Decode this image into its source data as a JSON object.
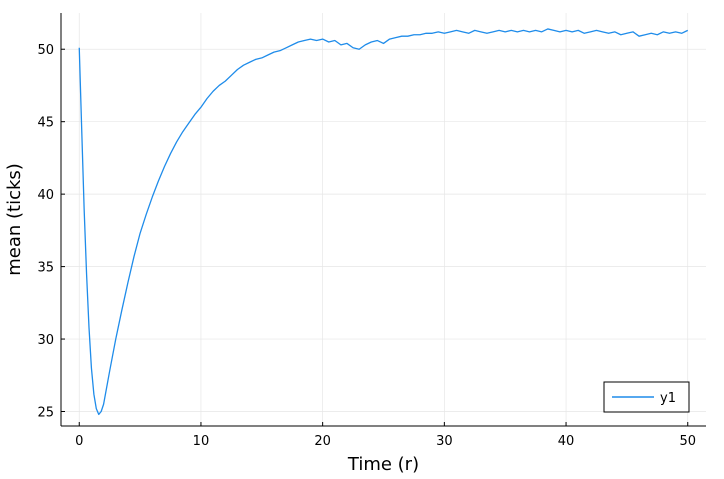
{
  "chart_data": {
    "type": "line",
    "title": "",
    "xlabel": "Time (r)",
    "ylabel": "mean (ticks)",
    "xlim": [
      -1.5,
      51.5
    ],
    "ylim": [
      24.0,
      52.5
    ],
    "xticks": [
      0,
      10,
      20,
      30,
      40,
      50
    ],
    "yticks": [
      25,
      30,
      35,
      40,
      45,
      50
    ],
    "xtick_labels": [
      "0",
      "10",
      "20",
      "30",
      "40",
      "50"
    ],
    "ytick_labels": [
      "25",
      "30",
      "35",
      "40",
      "45",
      "50"
    ],
    "grid": true,
    "legend": {
      "position": "bottom-right",
      "entries": [
        "y1"
      ]
    },
    "series": [
      {
        "name": "y1",
        "color": "#1f8cea",
        "x": [
          0,
          0.2,
          0.4,
          0.6,
          0.8,
          1.0,
          1.2,
          1.4,
          1.6,
          1.8,
          2.0,
          2.5,
          3.0,
          3.5,
          4.0,
          4.5,
          5.0,
          5.5,
          6.0,
          6.5,
          7.0,
          7.5,
          8.0,
          8.5,
          9.0,
          9.5,
          10.0,
          10.5,
          11.0,
          11.5,
          12.0,
          12.5,
          13.0,
          13.5,
          14.0,
          14.5,
          15.0,
          15.5,
          16.0,
          16.5,
          17.0,
          17.5,
          18.0,
          18.5,
          19.0,
          19.5,
          20.0,
          20.5,
          21.0,
          21.5,
          22.0,
          22.5,
          23.0,
          23.5,
          24.0,
          24.5,
          25.0,
          25.5,
          26.0,
          26.5,
          27.0,
          27.5,
          28.0,
          28.5,
          29.0,
          29.5,
          30.0,
          30.5,
          31.0,
          31.5,
          32.0,
          32.5,
          33.0,
          33.5,
          34.0,
          34.5,
          35.0,
          35.5,
          36.0,
          36.5,
          37.0,
          37.5,
          38.0,
          38.5,
          39.0,
          39.5,
          40.0,
          40.5,
          41.0,
          41.5,
          42.0,
          42.5,
          43.0,
          43.5,
          44.0,
          44.5,
          45.0,
          45.5,
          46.0,
          46.5,
          47.0,
          47.5,
          48.0,
          48.5,
          49.0,
          49.5,
          50.0
        ],
        "values": [
          50.1,
          44.5,
          39.0,
          34.5,
          30.8,
          28.0,
          26.2,
          25.2,
          24.8,
          25.0,
          25.5,
          27.8,
          30.0,
          32.0,
          33.9,
          35.7,
          37.3,
          38.6,
          39.8,
          40.9,
          41.9,
          42.8,
          43.6,
          44.3,
          44.9,
          45.5,
          46.0,
          46.6,
          47.1,
          47.5,
          47.8,
          48.2,
          48.6,
          48.9,
          49.1,
          49.3,
          49.4,
          49.6,
          49.8,
          49.9,
          50.1,
          50.3,
          50.5,
          50.6,
          50.7,
          50.6,
          50.7,
          50.5,
          50.6,
          50.3,
          50.4,
          50.1,
          50.0,
          50.3,
          50.5,
          50.6,
          50.4,
          50.7,
          50.8,
          50.9,
          50.9,
          51.0,
          51.0,
          51.1,
          51.1,
          51.2,
          51.1,
          51.2,
          51.3,
          51.2,
          51.1,
          51.3,
          51.2,
          51.1,
          51.2,
          51.3,
          51.2,
          51.3,
          51.2,
          51.3,
          51.2,
          51.3,
          51.2,
          51.4,
          51.3,
          51.2,
          51.3,
          51.2,
          51.3,
          51.1,
          51.2,
          51.3,
          51.2,
          51.1,
          51.2,
          51.0,
          51.1,
          51.2,
          50.9,
          51.0,
          51.1,
          51.0,
          51.2,
          51.1,
          51.2,
          51.1,
          51.3
        ]
      }
    ]
  }
}
